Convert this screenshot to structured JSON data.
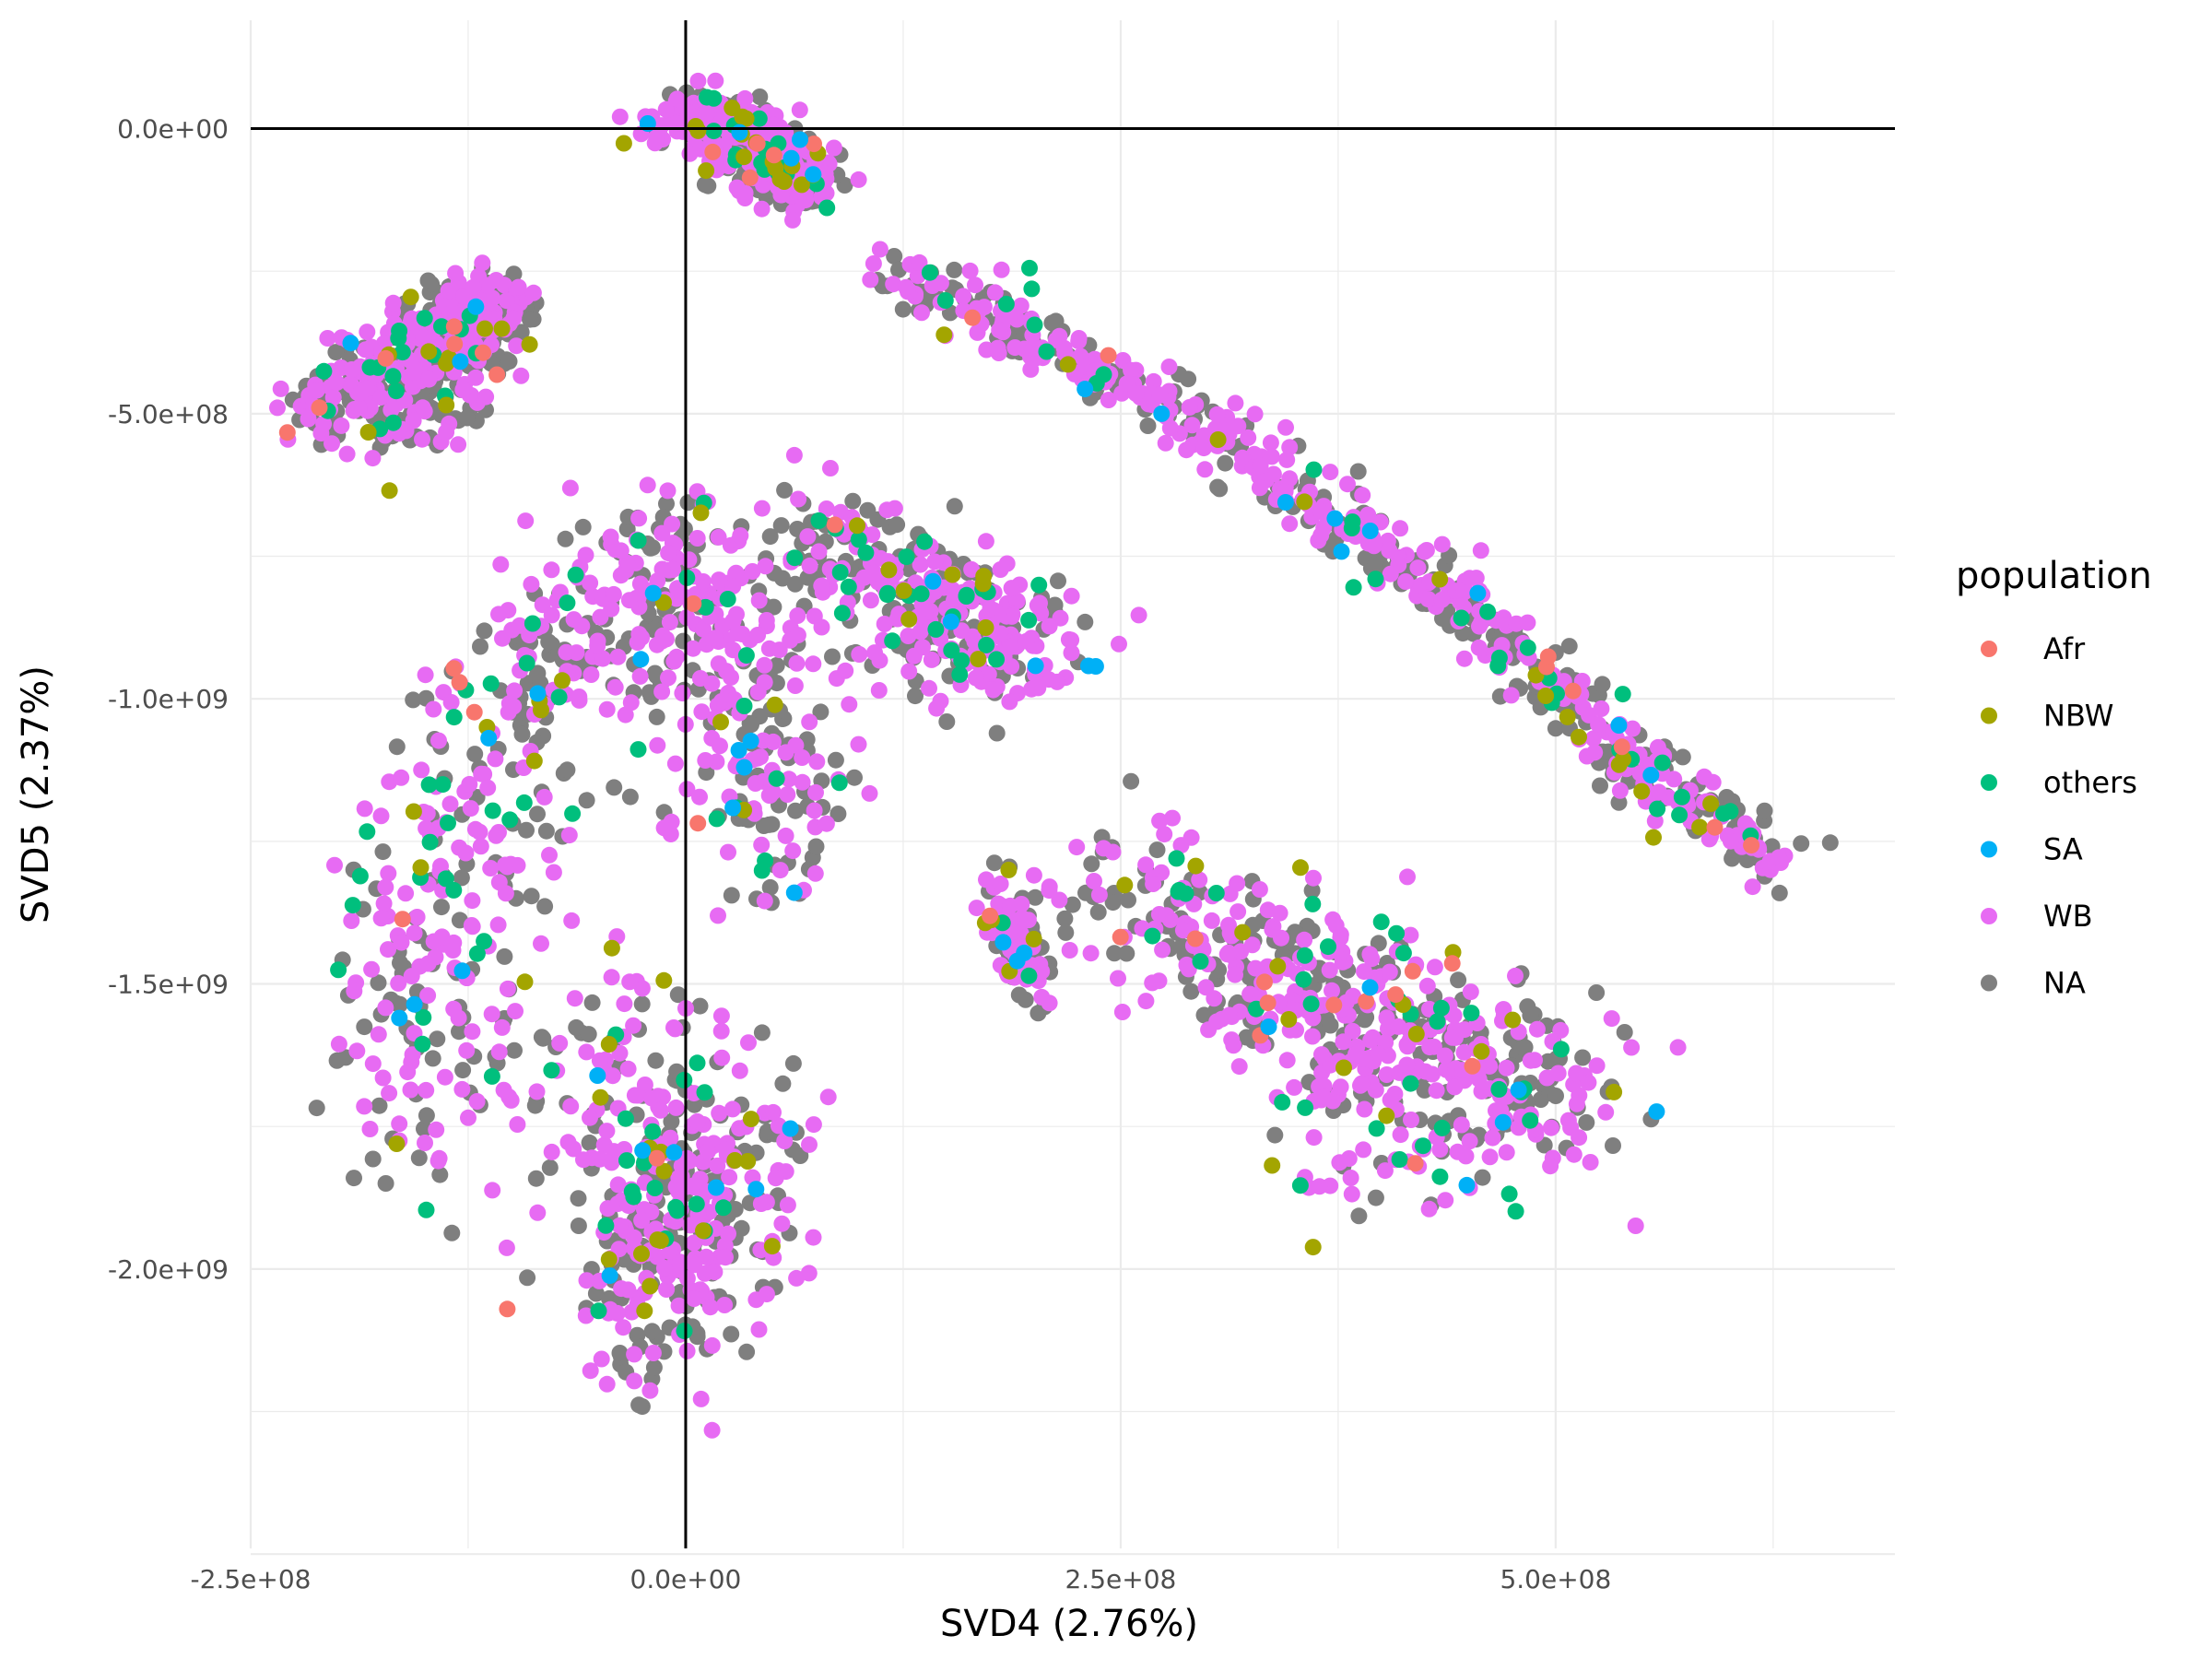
{
  "chart_data": {
    "type": "scatter",
    "title": "",
    "xlabel": "SVD4 (2.76%)",
    "ylabel": "SVD5 (2.37%)",
    "xlim": [
      -250000000.0,
      695000000.0
    ],
    "ylim": [
      -2490000000.0,
      190000000.0
    ],
    "x_ticks": [
      {
        "value": -250000000.0,
        "label": "-2.5e+08"
      },
      {
        "value": 0,
        "label": "0.0e+00"
      },
      {
        "value": 250000000.0,
        "label": "2.5e+08"
      },
      {
        "value": 500000000.0,
        "label": "5.0e+08"
      }
    ],
    "y_ticks": [
      {
        "value": 0,
        "label": "0.0e+00"
      },
      {
        "value": -500000000.0,
        "label": "-5.0e+08"
      },
      {
        "value": -1000000000.0,
        "label": "-1.0e+09"
      },
      {
        "value": -1500000000.0,
        "label": "-1.5e+09"
      },
      {
        "value": -2000000000.0,
        "label": "-2.0e+09"
      }
    ],
    "reference_lines": {
      "h": 0,
      "v": 0
    },
    "grid": true,
    "legend": {
      "title": "population",
      "position": "right",
      "entries": [
        {
          "name": "Afr",
          "color": "#F8766D"
        },
        {
          "name": "NBW",
          "color": "#A3A500"
        },
        {
          "name": "others",
          "color": "#00BF7D"
        },
        {
          "name": "SA",
          "color": "#00B0F6"
        },
        {
          "name": "WB",
          "color": "#E76BF3"
        },
        {
          "name": "NA",
          "color": "#7F7F7F"
        }
      ]
    },
    "clusters": [
      {
        "points": [
          [
            -5000000.0,
            0
          ],
          [
            15000000.0,
            30000000.0
          ],
          [
            40000000.0,
            -20000000.0
          ],
          [
            70000000.0,
            -80000000.0
          ],
          [
            60000000.0,
            -100000000.0
          ],
          [
            30000000.0,
            -50000000.0
          ]
        ],
        "spread": [
          12000000.0,
          25000000.0
        ]
      },
      {
        "points": [
          [
            -215000000.0,
            -500000000.0
          ],
          [
            -180000000.0,
            -420000000.0
          ],
          [
            -140000000.0,
            -340000000.0
          ],
          [
            -105000000.0,
            -290000000.0
          ],
          [
            -130000000.0,
            -430000000.0
          ],
          [
            -175000000.0,
            -550000000.0
          ]
        ],
        "spread": [
          13000000.0,
          35000000.0
        ]
      },
      {
        "points": [
          [
            120000000.0,
            -250000000.0
          ],
          [
            200000000.0,
            -370000000.0
          ],
          [
            280000000.0,
            -490000000.0
          ],
          [
            360000000.0,
            -660000000.0
          ],
          [
            430000000.0,
            -800000000.0
          ],
          [
            500000000.0,
            -980000000.0
          ],
          [
            560000000.0,
            -1150000000.0
          ],
          [
            630000000.0,
            -1280000000.0
          ]
        ],
        "spread": [
          10000000.0,
          30000000.0
        ]
      },
      {
        "points": [
          [
            -160000000.0,
            -1800000000.0
          ],
          [
            -150000000.0,
            -1500000000.0
          ],
          [
            -130000000.0,
            -1250000000.0
          ],
          [
            -100000000.0,
            -1000000000.0
          ],
          [
            -50000000.0,
            -850000000.0
          ],
          [
            0,
            -720000000.0
          ],
          [
            20000000.0,
            -900000000.0
          ],
          [
            40000000.0,
            -1100000000.0
          ],
          [
            50000000.0,
            -1250000000.0
          ]
        ],
        "spread": [
          28000000.0,
          80000000.0
        ]
      },
      {
        "points": [
          [
            80000000.0,
            -700000000.0
          ],
          [
            120000000.0,
            -780000000.0
          ],
          [
            160000000.0,
            -850000000.0
          ],
          [
            200000000.0,
            -920000000.0
          ],
          [
            110000000.0,
            -900000000.0
          ]
        ],
        "spread": [
          25000000.0,
          50000000.0
        ]
      },
      {
        "points": [
          [
            -50000000.0,
            -1550000000.0
          ],
          [
            -30000000.0,
            -1800000000.0
          ],
          [
            -10000000.0,
            -2050000000.0
          ],
          [
            10000000.0,
            -1850000000.0
          ],
          [
            30000000.0,
            -1750000000.0
          ],
          [
            -40000000.0,
            -2150000000.0
          ]
        ],
        "spread": [
          25000000.0,
          100000000.0
        ]
      },
      {
        "points": [
          [
            180000000.0,
            -1350000000.0
          ],
          [
            200000000.0,
            -1500000000.0
          ]
        ],
        "spread": [
          6000000.0,
          35000000.0
        ]
      },
      {
        "points": [
          [
            250000000.0,
            -1300000000.0
          ],
          [
            300000000.0,
            -1450000000.0
          ],
          [
            350000000.0,
            -1500000000.0
          ],
          [
            400000000.0,
            -1600000000.0
          ],
          [
            450000000.0,
            -1600000000.0
          ],
          [
            500000000.0,
            -1720000000.0
          ],
          [
            400000000.0,
            -1800000000.0
          ],
          [
            330000000.0,
            -1350000000.0
          ]
        ],
        "spread": [
          30000000.0,
          70000000.0
        ]
      }
    ]
  }
}
